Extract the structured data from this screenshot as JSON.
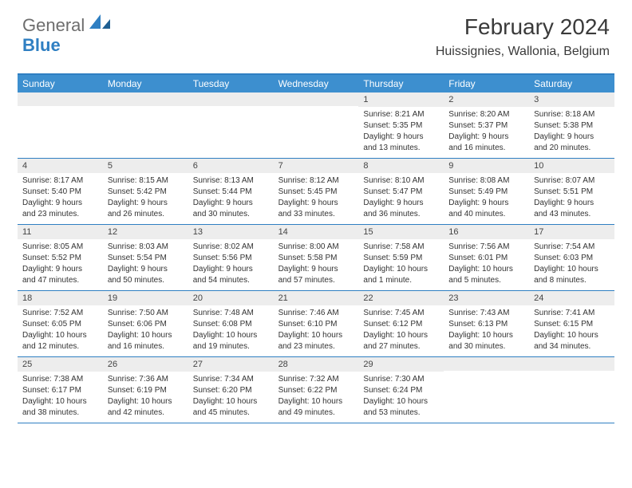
{
  "brand": {
    "part1": "General",
    "part2": "Blue"
  },
  "title": "February 2024",
  "location": "Huissignies, Wallonia, Belgium",
  "colors": {
    "header_bg": "#3d8fcf",
    "border": "#2f7fc2",
    "daynum_bg": "#ededed",
    "text": "#333333",
    "brand_gray": "#6d6d6d",
    "brand_blue": "#2f7fc2",
    "white": "#ffffff"
  },
  "weekdays": [
    "Sunday",
    "Monday",
    "Tuesday",
    "Wednesday",
    "Thursday",
    "Friday",
    "Saturday"
  ],
  "layout": {
    "columns": 7,
    "rows": 5,
    "first_day_col": 4
  },
  "days": [
    {
      "n": "1",
      "sr": "Sunrise: 8:21 AM",
      "ss": "Sunset: 5:35 PM",
      "dl1": "Daylight: 9 hours",
      "dl2": "and 13 minutes."
    },
    {
      "n": "2",
      "sr": "Sunrise: 8:20 AM",
      "ss": "Sunset: 5:37 PM",
      "dl1": "Daylight: 9 hours",
      "dl2": "and 16 minutes."
    },
    {
      "n": "3",
      "sr": "Sunrise: 8:18 AM",
      "ss": "Sunset: 5:38 PM",
      "dl1": "Daylight: 9 hours",
      "dl2": "and 20 minutes."
    },
    {
      "n": "4",
      "sr": "Sunrise: 8:17 AM",
      "ss": "Sunset: 5:40 PM",
      "dl1": "Daylight: 9 hours",
      "dl2": "and 23 minutes."
    },
    {
      "n": "5",
      "sr": "Sunrise: 8:15 AM",
      "ss": "Sunset: 5:42 PM",
      "dl1": "Daylight: 9 hours",
      "dl2": "and 26 minutes."
    },
    {
      "n": "6",
      "sr": "Sunrise: 8:13 AM",
      "ss": "Sunset: 5:44 PM",
      "dl1": "Daylight: 9 hours",
      "dl2": "and 30 minutes."
    },
    {
      "n": "7",
      "sr": "Sunrise: 8:12 AM",
      "ss": "Sunset: 5:45 PM",
      "dl1": "Daylight: 9 hours",
      "dl2": "and 33 minutes."
    },
    {
      "n": "8",
      "sr": "Sunrise: 8:10 AM",
      "ss": "Sunset: 5:47 PM",
      "dl1": "Daylight: 9 hours",
      "dl2": "and 36 minutes."
    },
    {
      "n": "9",
      "sr": "Sunrise: 8:08 AM",
      "ss": "Sunset: 5:49 PM",
      "dl1": "Daylight: 9 hours",
      "dl2": "and 40 minutes."
    },
    {
      "n": "10",
      "sr": "Sunrise: 8:07 AM",
      "ss": "Sunset: 5:51 PM",
      "dl1": "Daylight: 9 hours",
      "dl2": "and 43 minutes."
    },
    {
      "n": "11",
      "sr": "Sunrise: 8:05 AM",
      "ss": "Sunset: 5:52 PM",
      "dl1": "Daylight: 9 hours",
      "dl2": "and 47 minutes."
    },
    {
      "n": "12",
      "sr": "Sunrise: 8:03 AM",
      "ss": "Sunset: 5:54 PM",
      "dl1": "Daylight: 9 hours",
      "dl2": "and 50 minutes."
    },
    {
      "n": "13",
      "sr": "Sunrise: 8:02 AM",
      "ss": "Sunset: 5:56 PM",
      "dl1": "Daylight: 9 hours",
      "dl2": "and 54 minutes."
    },
    {
      "n": "14",
      "sr": "Sunrise: 8:00 AM",
      "ss": "Sunset: 5:58 PM",
      "dl1": "Daylight: 9 hours",
      "dl2": "and 57 minutes."
    },
    {
      "n": "15",
      "sr": "Sunrise: 7:58 AM",
      "ss": "Sunset: 5:59 PM",
      "dl1": "Daylight: 10 hours",
      "dl2": "and 1 minute."
    },
    {
      "n": "16",
      "sr": "Sunrise: 7:56 AM",
      "ss": "Sunset: 6:01 PM",
      "dl1": "Daylight: 10 hours",
      "dl2": "and 5 minutes."
    },
    {
      "n": "17",
      "sr": "Sunrise: 7:54 AM",
      "ss": "Sunset: 6:03 PM",
      "dl1": "Daylight: 10 hours",
      "dl2": "and 8 minutes."
    },
    {
      "n": "18",
      "sr": "Sunrise: 7:52 AM",
      "ss": "Sunset: 6:05 PM",
      "dl1": "Daylight: 10 hours",
      "dl2": "and 12 minutes."
    },
    {
      "n": "19",
      "sr": "Sunrise: 7:50 AM",
      "ss": "Sunset: 6:06 PM",
      "dl1": "Daylight: 10 hours",
      "dl2": "and 16 minutes."
    },
    {
      "n": "20",
      "sr": "Sunrise: 7:48 AM",
      "ss": "Sunset: 6:08 PM",
      "dl1": "Daylight: 10 hours",
      "dl2": "and 19 minutes."
    },
    {
      "n": "21",
      "sr": "Sunrise: 7:46 AM",
      "ss": "Sunset: 6:10 PM",
      "dl1": "Daylight: 10 hours",
      "dl2": "and 23 minutes."
    },
    {
      "n": "22",
      "sr": "Sunrise: 7:45 AM",
      "ss": "Sunset: 6:12 PM",
      "dl1": "Daylight: 10 hours",
      "dl2": "and 27 minutes."
    },
    {
      "n": "23",
      "sr": "Sunrise: 7:43 AM",
      "ss": "Sunset: 6:13 PM",
      "dl1": "Daylight: 10 hours",
      "dl2": "and 30 minutes."
    },
    {
      "n": "24",
      "sr": "Sunrise: 7:41 AM",
      "ss": "Sunset: 6:15 PM",
      "dl1": "Daylight: 10 hours",
      "dl2": "and 34 minutes."
    },
    {
      "n": "25",
      "sr": "Sunrise: 7:38 AM",
      "ss": "Sunset: 6:17 PM",
      "dl1": "Daylight: 10 hours",
      "dl2": "and 38 minutes."
    },
    {
      "n": "26",
      "sr": "Sunrise: 7:36 AM",
      "ss": "Sunset: 6:19 PM",
      "dl1": "Daylight: 10 hours",
      "dl2": "and 42 minutes."
    },
    {
      "n": "27",
      "sr": "Sunrise: 7:34 AM",
      "ss": "Sunset: 6:20 PM",
      "dl1": "Daylight: 10 hours",
      "dl2": "and 45 minutes."
    },
    {
      "n": "28",
      "sr": "Sunrise: 7:32 AM",
      "ss": "Sunset: 6:22 PM",
      "dl1": "Daylight: 10 hours",
      "dl2": "and 49 minutes."
    },
    {
      "n": "29",
      "sr": "Sunrise: 7:30 AM",
      "ss": "Sunset: 6:24 PM",
      "dl1": "Daylight: 10 hours",
      "dl2": "and 53 minutes."
    }
  ]
}
